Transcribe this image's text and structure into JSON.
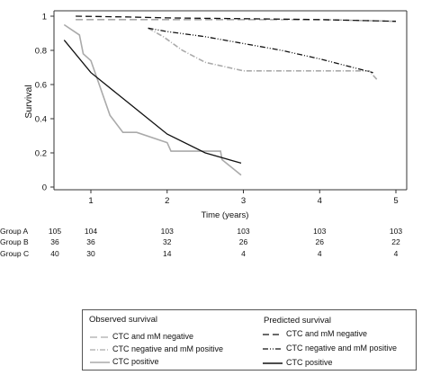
{
  "chart_data": {
    "type": "line",
    "title": "",
    "xlabel": "Time (years)",
    "ylabel": "Survival",
    "xlim": [
      0.6,
      5.1
    ],
    "ylim": [
      0,
      1
    ],
    "xticks": [
      "1",
      "2",
      "3",
      "4",
      "5"
    ],
    "yticks": [
      "0",
      "0.2",
      "0.4",
      "0.6",
      "0.8",
      "1"
    ],
    "grid": false,
    "legend_position": "bottom",
    "series": [
      {
        "name": "CTC and mM negative",
        "kind": "observed",
        "color": "#aaaaaa",
        "dash": "8,4",
        "x": [
          0.8,
          1.0,
          2.0,
          3.0,
          4.0,
          5.0
        ],
        "y": [
          0.98,
          0.98,
          0.98,
          0.98,
          0.98,
          0.97
        ]
      },
      {
        "name": "CTC negative  and mM positive",
        "kind": "observed",
        "color": "#aaaaaa",
        "dash": "6,2,1,2",
        "x": [
          1.75,
          1.95,
          2.2,
          2.5,
          3.0,
          4.0,
          4.65,
          4.75
        ],
        "y": [
          0.93,
          0.88,
          0.8,
          0.73,
          0.68,
          0.68,
          0.68,
          0.63
        ]
      },
      {
        "name": "CTC positive",
        "kind": "observed",
        "color": "#aaaaaa",
        "dash": "",
        "x": [
          0.65,
          0.85,
          0.9,
          1.0,
          1.25,
          1.42,
          1.6,
          2.0,
          2.05,
          2.4,
          2.7,
          2.72,
          2.97
        ],
        "y": [
          0.95,
          0.89,
          0.78,
          0.74,
          0.42,
          0.32,
          0.32,
          0.26,
          0.21,
          0.21,
          0.21,
          0.16,
          0.07
        ]
      },
      {
        "name": "CTC and mM negative",
        "kind": "predicted",
        "color": "#111111",
        "dash": "7,4",
        "x": [
          0.8,
          1.5,
          2.0,
          3.0,
          4.0,
          5.0
        ],
        "y": [
          1.0,
          0.995,
          0.99,
          0.985,
          0.98,
          0.97
        ]
      },
      {
        "name": "CTC negative  and mM positive",
        "kind": "predicted",
        "color": "#111111",
        "dash": "6,2,1,2,1,2",
        "x": [
          1.75,
          2.0,
          2.5,
          3.0,
          3.5,
          4.0,
          4.7
        ],
        "y": [
          0.93,
          0.91,
          0.88,
          0.84,
          0.8,
          0.75,
          0.67
        ]
      },
      {
        "name": "CTC positive",
        "kind": "predicted",
        "color": "#111111",
        "dash": "",
        "x": [
          0.65,
          1.0,
          1.5,
          2.0,
          2.5,
          2.97
        ],
        "y": [
          0.86,
          0.67,
          0.49,
          0.31,
          0.2,
          0.14
        ]
      }
    ]
  },
  "risk_table": {
    "rows": [
      {
        "label": "Group A",
        "values": [
          "105",
          "104",
          "103",
          "103",
          "103",
          "103"
        ]
      },
      {
        "label": "Group B",
        "values": [
          "36",
          "36",
          "32",
          "26",
          "26",
          "22"
        ]
      },
      {
        "label": "Group C",
        "values": [
          "40",
          "30",
          "14",
          "4",
          "4",
          "4"
        ]
      }
    ],
    "times": [
      0.6,
      1,
      2,
      3,
      4,
      5
    ]
  },
  "legend": {
    "observed_title": "Observed survival",
    "predicted_title": "Predicted survival",
    "observed_items": [
      "CTC and mM negative",
      "CTC negative  and mM positive",
      "CTC positive"
    ],
    "predicted_items": [
      "CTC and mM negative",
      "CTC negative  and mM positive",
      "CTC positive"
    ]
  }
}
